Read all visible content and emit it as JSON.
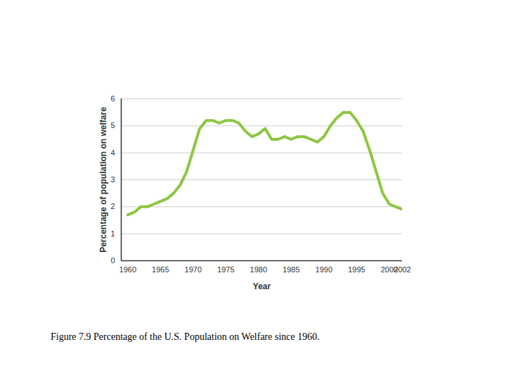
{
  "chart_data": {
    "type": "line",
    "caption": "Figure 7.9 Percentage of the U.S. Population on Welfare since 1960.",
    "x_label": "Year",
    "y_label": "Percentage of population on welfare",
    "x": [
      1960,
      1961,
      1962,
      1963,
      1964,
      1965,
      1966,
      1967,
      1968,
      1969,
      1970,
      1971,
      1972,
      1973,
      1974,
      1975,
      1976,
      1977,
      1978,
      1979,
      1980,
      1981,
      1982,
      1983,
      1984,
      1985,
      1986,
      1987,
      1988,
      1989,
      1990,
      1991,
      1992,
      1993,
      1994,
      1995,
      1996,
      1997,
      1998,
      1999,
      2000,
      2001,
      2002
    ],
    "values": [
      1.7,
      1.8,
      2.0,
      2.0,
      2.1,
      2.2,
      2.3,
      2.5,
      2.8,
      3.3,
      4.1,
      4.9,
      5.2,
      5.2,
      5.1,
      5.2,
      5.2,
      5.1,
      4.8,
      4.6,
      4.7,
      4.9,
      4.5,
      4.5,
      4.6,
      4.5,
      4.6,
      4.6,
      4.5,
      4.4,
      4.6,
      5.0,
      5.3,
      5.5,
      5.5,
      5.2,
      4.8,
      4.1,
      3.3,
      2.5,
      2.1,
      2.0,
      1.9
    ],
    "color": "#8cc63f",
    "xlim": [
      1959,
      2002
    ],
    "xticks": [
      1960,
      1965,
      1970,
      1975,
      1980,
      1985,
      1990,
      1995,
      2000,
      2002
    ],
    "ylim": [
      0,
      6
    ],
    "yticks": [
      0,
      1,
      2,
      3,
      4,
      5,
      6
    ],
    "grid": true
  }
}
